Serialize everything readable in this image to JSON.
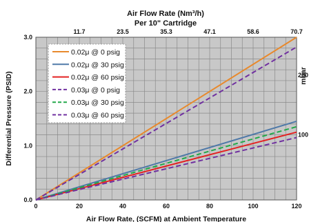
{
  "chart_data": {
    "type": "line",
    "top_title": "Air Flow Rate (Nm³/h)",
    "top_subtitle": "Per 10\" Cartridge",
    "xlabel": "Air Flow Rate, (SCFM) at Ambient Temperature",
    "ylabel": "Differential Pressure (PSID)",
    "right_label": "mbar",
    "xlim": [
      0,
      120
    ],
    "ylim": [
      0,
      3.0
    ],
    "x_ticks": [
      "0",
      "20",
      "40",
      "60",
      "80",
      "100",
      "120"
    ],
    "y_ticks": [
      "0.0",
      "1.0",
      "2.0",
      "3.0"
    ],
    "top_ticks": [
      "11.7",
      "23.5",
      "35.3",
      "47.1",
      "58.6",
      "70.7"
    ],
    "right_ticks": [
      "100",
      "200"
    ],
    "grid": true,
    "legend_position": "top-left",
    "series": [
      {
        "name": "0.02μ @ 0 psig",
        "color": "#e8892c",
        "dash": "solid",
        "x": [
          0,
          120
        ],
        "y": [
          0,
          3.0
        ]
      },
      {
        "name": "0.02μ @ 30 psig",
        "color": "#4f79a8",
        "dash": "solid",
        "x": [
          0,
          120
        ],
        "y": [
          0,
          1.45
        ]
      },
      {
        "name": "0.02μ @ 60 psig",
        "color": "#e32222",
        "dash": "solid",
        "x": [
          0,
          120
        ],
        "y": [
          0,
          1.25
        ]
      },
      {
        "name": "0.03μ @ 0 psig",
        "color": "#7030a0",
        "dash": "dashed",
        "x": [
          0,
          120
        ],
        "y": [
          0,
          2.82
        ]
      },
      {
        "name": "0.03μ @ 30 psig",
        "color": "#22a84a",
        "dash": "dashed",
        "x": [
          0,
          120
        ],
        "y": [
          0,
          1.35
        ]
      },
      {
        "name": "0.03μ @ 60 psig",
        "color": "#7030a0",
        "dash": "dashed",
        "x": [
          0,
          120
        ],
        "y": [
          0,
          1.15
        ]
      }
    ]
  }
}
